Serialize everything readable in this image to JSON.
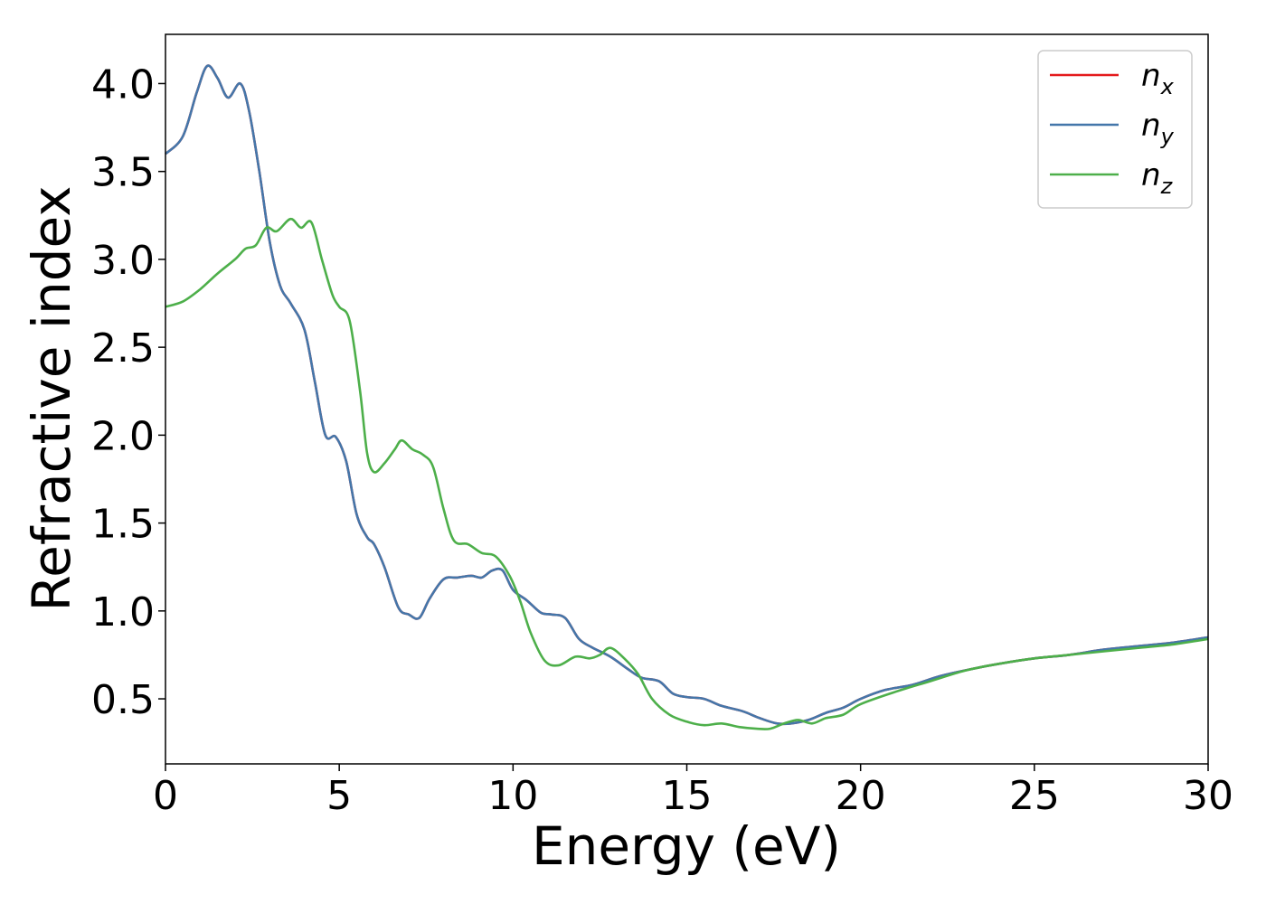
{
  "chart_data": {
    "type": "line",
    "xlabel": "Energy (eV)",
    "ylabel": "Refractive index",
    "xlim": [
      0,
      30
    ],
    "ylim": [
      0.13,
      4.28
    ],
    "xticks": [
      "0",
      "5",
      "10",
      "15",
      "20",
      "25",
      "30"
    ],
    "yticks": [
      "0.5",
      "1.0",
      "1.5",
      "2.0",
      "2.5",
      "3.0",
      "3.5",
      "4.0"
    ],
    "grid": false,
    "legend_position": "top-right",
    "series": [
      {
        "name": "n_x",
        "label_main": "n",
        "label_sub": "x",
        "color": "#e41a1c",
        "points": [
          [
            0,
            3.6
          ],
          [
            0.5,
            3.7
          ],
          [
            0.9,
            3.95
          ],
          [
            1.2,
            4.1
          ],
          [
            1.5,
            4.03
          ],
          [
            1.8,
            3.92
          ],
          [
            2.15,
            4.0
          ],
          [
            2.4,
            3.85
          ],
          [
            2.7,
            3.5
          ],
          [
            3.0,
            3.1
          ],
          [
            3.3,
            2.85
          ],
          [
            3.6,
            2.75
          ],
          [
            4.0,
            2.6
          ],
          [
            4.3,
            2.3
          ],
          [
            4.6,
            2.0
          ],
          [
            4.9,
            1.99
          ],
          [
            5.2,
            1.85
          ],
          [
            5.5,
            1.55
          ],
          [
            5.8,
            1.42
          ],
          [
            6.0,
            1.38
          ],
          [
            6.3,
            1.25
          ],
          [
            6.7,
            1.02
          ],
          [
            7.0,
            0.98
          ],
          [
            7.3,
            0.96
          ],
          [
            7.6,
            1.07
          ],
          [
            8.0,
            1.18
          ],
          [
            8.4,
            1.19
          ],
          [
            8.8,
            1.2
          ],
          [
            9.1,
            1.19
          ],
          [
            9.4,
            1.23
          ],
          [
            9.7,
            1.23
          ],
          [
            10.0,
            1.12
          ],
          [
            10.4,
            1.06
          ],
          [
            10.8,
            0.99
          ],
          [
            11.1,
            0.98
          ],
          [
            11.5,
            0.96
          ],
          [
            11.9,
            0.84
          ],
          [
            12.3,
            0.79
          ],
          [
            12.8,
            0.74
          ],
          [
            13.3,
            0.67
          ],
          [
            13.7,
            0.62
          ],
          [
            14.2,
            0.6
          ],
          [
            14.6,
            0.53
          ],
          [
            15.0,
            0.51
          ],
          [
            15.5,
            0.5
          ],
          [
            16.0,
            0.46
          ],
          [
            16.6,
            0.43
          ],
          [
            17.1,
            0.39
          ],
          [
            17.6,
            0.36
          ],
          [
            18.0,
            0.36
          ],
          [
            18.5,
            0.38
          ],
          [
            19.0,
            0.42
          ],
          [
            19.5,
            0.45
          ],
          [
            20.0,
            0.5
          ],
          [
            20.7,
            0.55
          ],
          [
            21.5,
            0.58
          ],
          [
            22.3,
            0.63
          ],
          [
            23.2,
            0.67
          ],
          [
            24.0,
            0.7
          ],
          [
            25.0,
            0.73
          ],
          [
            26.0,
            0.75
          ],
          [
            27.0,
            0.78
          ],
          [
            28.0,
            0.8
          ],
          [
            29.0,
            0.82
          ],
          [
            30.0,
            0.85
          ]
        ]
      },
      {
        "name": "n_y",
        "label_main": "n",
        "label_sub": "y",
        "color": "#4477aa",
        "points": [
          [
            0,
            3.6
          ],
          [
            0.5,
            3.7
          ],
          [
            0.9,
            3.95
          ],
          [
            1.2,
            4.1
          ],
          [
            1.5,
            4.03
          ],
          [
            1.8,
            3.92
          ],
          [
            2.15,
            4.0
          ],
          [
            2.4,
            3.85
          ],
          [
            2.7,
            3.5
          ],
          [
            3.0,
            3.1
          ],
          [
            3.3,
            2.85
          ],
          [
            3.6,
            2.75
          ],
          [
            4.0,
            2.6
          ],
          [
            4.3,
            2.3
          ],
          [
            4.6,
            2.0
          ],
          [
            4.9,
            1.99
          ],
          [
            5.2,
            1.85
          ],
          [
            5.5,
            1.55
          ],
          [
            5.8,
            1.42
          ],
          [
            6.0,
            1.38
          ],
          [
            6.3,
            1.25
          ],
          [
            6.7,
            1.02
          ],
          [
            7.0,
            0.98
          ],
          [
            7.3,
            0.96
          ],
          [
            7.6,
            1.07
          ],
          [
            8.0,
            1.18
          ],
          [
            8.4,
            1.19
          ],
          [
            8.8,
            1.2
          ],
          [
            9.1,
            1.19
          ],
          [
            9.4,
            1.23
          ],
          [
            9.7,
            1.23
          ],
          [
            10.0,
            1.12
          ],
          [
            10.4,
            1.06
          ],
          [
            10.8,
            0.99
          ],
          [
            11.1,
            0.98
          ],
          [
            11.5,
            0.96
          ],
          [
            11.9,
            0.84
          ],
          [
            12.3,
            0.79
          ],
          [
            12.8,
            0.74
          ],
          [
            13.3,
            0.67
          ],
          [
            13.7,
            0.62
          ],
          [
            14.2,
            0.6
          ],
          [
            14.6,
            0.53
          ],
          [
            15.0,
            0.51
          ],
          [
            15.5,
            0.5
          ],
          [
            16.0,
            0.46
          ],
          [
            16.6,
            0.43
          ],
          [
            17.1,
            0.39
          ],
          [
            17.6,
            0.36
          ],
          [
            18.0,
            0.36
          ],
          [
            18.5,
            0.38
          ],
          [
            19.0,
            0.42
          ],
          [
            19.5,
            0.45
          ],
          [
            20.0,
            0.5
          ],
          [
            20.7,
            0.55
          ],
          [
            21.5,
            0.58
          ],
          [
            22.3,
            0.63
          ],
          [
            23.2,
            0.67
          ],
          [
            24.0,
            0.7
          ],
          [
            25.0,
            0.73
          ],
          [
            26.0,
            0.75
          ],
          [
            27.0,
            0.78
          ],
          [
            28.0,
            0.8
          ],
          [
            29.0,
            0.82
          ],
          [
            30.0,
            0.85
          ]
        ]
      },
      {
        "name": "n_z",
        "label_main": "n",
        "label_sub": "z",
        "color": "#4daf4a",
        "points": [
          [
            0,
            2.73
          ],
          [
            0.5,
            2.76
          ],
          [
            1.0,
            2.83
          ],
          [
            1.5,
            2.92
          ],
          [
            2.0,
            3.0
          ],
          [
            2.3,
            3.06
          ],
          [
            2.6,
            3.08
          ],
          [
            2.9,
            3.18
          ],
          [
            3.2,
            3.16
          ],
          [
            3.6,
            3.23
          ],
          [
            3.9,
            3.18
          ],
          [
            4.2,
            3.21
          ],
          [
            4.5,
            3.0
          ],
          [
            4.8,
            2.8
          ],
          [
            5.0,
            2.73
          ],
          [
            5.3,
            2.65
          ],
          [
            5.6,
            2.25
          ],
          [
            5.8,
            1.9
          ],
          [
            6.0,
            1.79
          ],
          [
            6.3,
            1.84
          ],
          [
            6.6,
            1.92
          ],
          [
            6.8,
            1.97
          ],
          [
            7.1,
            1.92
          ],
          [
            7.4,
            1.89
          ],
          [
            7.7,
            1.82
          ],
          [
            8.0,
            1.58
          ],
          [
            8.3,
            1.4
          ],
          [
            8.7,
            1.38
          ],
          [
            9.1,
            1.33
          ],
          [
            9.5,
            1.31
          ],
          [
            9.9,
            1.2
          ],
          [
            10.2,
            1.06
          ],
          [
            10.5,
            0.88
          ],
          [
            10.9,
            0.72
          ],
          [
            11.3,
            0.69
          ],
          [
            11.8,
            0.74
          ],
          [
            12.2,
            0.73
          ],
          [
            12.5,
            0.75
          ],
          [
            12.8,
            0.79
          ],
          [
            13.2,
            0.73
          ],
          [
            13.6,
            0.64
          ],
          [
            14.0,
            0.5
          ],
          [
            14.5,
            0.41
          ],
          [
            15.0,
            0.37
          ],
          [
            15.5,
            0.35
          ],
          [
            16.0,
            0.36
          ],
          [
            16.5,
            0.34
          ],
          [
            17.0,
            0.33
          ],
          [
            17.4,
            0.33
          ],
          [
            17.8,
            0.36
          ],
          [
            18.2,
            0.38
          ],
          [
            18.6,
            0.36
          ],
          [
            19.0,
            0.39
          ],
          [
            19.5,
            0.41
          ],
          [
            20.0,
            0.47
          ],
          [
            21.0,
            0.54
          ],
          [
            22.0,
            0.6
          ],
          [
            23.0,
            0.66
          ],
          [
            24.0,
            0.7
          ],
          [
            25.0,
            0.73
          ],
          [
            26.0,
            0.75
          ],
          [
            27.0,
            0.77
          ],
          [
            28.0,
            0.79
          ],
          [
            29.0,
            0.81
          ],
          [
            30.0,
            0.84
          ]
        ]
      }
    ]
  }
}
